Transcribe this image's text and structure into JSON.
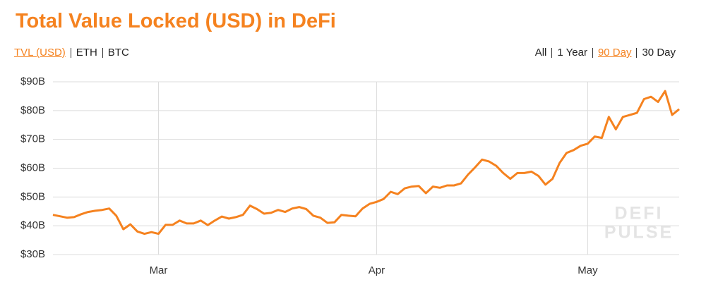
{
  "chart_data": {
    "type": "line",
    "title": "Total Value Locked (USD) in DeFi",
    "categories": [
      null,
      null,
      null,
      null,
      null,
      null,
      null,
      null,
      null,
      null,
      null,
      null,
      null,
      null,
      null,
      "Mar",
      null,
      null,
      null,
      null,
      null,
      null,
      null,
      null,
      null,
      null,
      null,
      null,
      null,
      null,
      null,
      null,
      null,
      null,
      null,
      null,
      null,
      null,
      null,
      null,
      null,
      null,
      null,
      null,
      null,
      null,
      "Apr",
      null,
      null,
      null,
      null,
      null,
      null,
      null,
      null,
      null,
      null,
      null,
      null,
      null,
      null,
      null,
      null,
      null,
      null,
      null,
      null,
      null,
      null,
      null,
      null,
      null,
      null,
      null,
      null,
      null,
      "May",
      null,
      null,
      null,
      null,
      null,
      null,
      null,
      null,
      null,
      null,
      null,
      null,
      null
    ],
    "series": [
      {
        "name": "TVL (USD)",
        "color": "#f5821f",
        "values": [
          43.8,
          43.3,
          42.8,
          43,
          44,
          44.8,
          45.2,
          45.5,
          46,
          43.5,
          38.8,
          40.5,
          38,
          37.2,
          37.8,
          37.2,
          40.3,
          40.3,
          41.8,
          40.8,
          40.8,
          41.8,
          40.2,
          41.8,
          43.2,
          42.5,
          43,
          43.8,
          47,
          45.8,
          44.2,
          44.5,
          45.5,
          44.8,
          46,
          46.5,
          45.8,
          43.5,
          42.8,
          41,
          41.2,
          43.8,
          43.5,
          43.3,
          46,
          47.6,
          48.3,
          49.3,
          51.8,
          51,
          53,
          53.6,
          53.8,
          51.3,
          53.6,
          53.2,
          54,
          54,
          54.7,
          57.8,
          60.3,
          63,
          62.3,
          60.8,
          58.3,
          56.3,
          58.3,
          58.3,
          58.8,
          57.3,
          54.3,
          56.3,
          61.8,
          65.3,
          66.3,
          67.8,
          68.5,
          71,
          70.5,
          77.8,
          73.5,
          77.8,
          78.5,
          79.2,
          84,
          84.8,
          83,
          86.8,
          78.5,
          80.5
        ]
      }
    ],
    "ylim": [
      30,
      90
    ],
    "yticks": [
      {
        "value": 30,
        "label": "$30B"
      },
      {
        "value": 40,
        "label": "$40B"
      },
      {
        "value": 50,
        "label": "$50B"
      },
      {
        "value": 60,
        "label": "$60B"
      },
      {
        "value": 70,
        "label": "$70B"
      },
      {
        "value": 80,
        "label": "$80B"
      },
      {
        "value": 90,
        "label": "$90B"
      }
    ],
    "grid": true
  },
  "controls": {
    "left": {
      "items": [
        "TVL (USD)",
        "ETH",
        "BTC"
      ],
      "selected": 0
    },
    "right": {
      "items": [
        "All",
        "1 Year",
        "90 Day",
        "30 Day"
      ],
      "selected": 2
    }
  },
  "watermark": [
    "DEFI",
    "PULSE"
  ]
}
